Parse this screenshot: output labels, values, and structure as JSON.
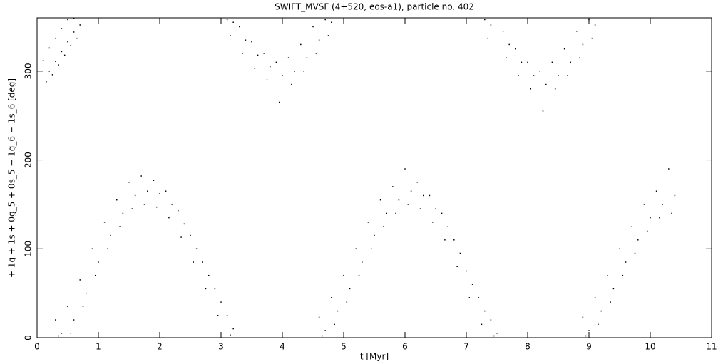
{
  "chart_data": {
    "type": "scatter",
    "title": "SWIFT_MVSF (4+520, eos-a1), particle no. 402",
    "xlabel": "t [Myr]",
    "ylabel": "+ 1g + 1s + 0g_5 + 0s_5 − 1g_6 − 1s_6 [deg]",
    "color": "#000000",
    "xlim": [
      0,
      11
    ],
    "xticks": [
      0,
      1,
      2,
      3,
      4,
      5,
      6,
      7,
      8,
      9,
      10,
      11
    ],
    "ylim": [
      0,
      360
    ],
    "yticks": [
      0,
      100,
      200,
      300
    ],
    "x": [
      0.1,
      0.15,
      0.2,
      0.2,
      0.25,
      0.3,
      0.3,
      0.35,
      0.4,
      0.4,
      0.45,
      0.5,
      0.5,
      0.55,
      0.6,
      0.6,
      0.65,
      0.7,
      0.3,
      0.35,
      0.4,
      0.5,
      0.55,
      0.6,
      0.7,
      0.75,
      0.8,
      0.9,
      0.95,
      1.0,
      1.1,
      1.15,
      1.2,
      1.3,
      1.35,
      1.4,
      1.5,
      1.55,
      1.6,
      1.7,
      1.75,
      1.8,
      1.9,
      1.95,
      2.0,
      2.1,
      2.15,
      2.2,
      2.3,
      2.35,
      2.4,
      2.5,
      2.55,
      2.6,
      2.7,
      2.75,
      2.8,
      2.9,
      2.95,
      3.0,
      3.1,
      3.15,
      3.2,
      3.1,
      3.15,
      3.2,
      3.3,
      3.35,
      3.4,
      3.5,
      3.55,
      3.6,
      3.7,
      3.75,
      3.8,
      3.9,
      3.95,
      4.0,
      4.1,
      4.15,
      4.2,
      4.3,
      4.35,
      4.4,
      4.5,
      4.55,
      4.6,
      4.7,
      4.75,
      4.8,
      4.6,
      4.65,
      4.7,
      4.8,
      4.85,
      4.9,
      5.0,
      5.05,
      5.1,
      5.2,
      5.25,
      5.3,
      5.4,
      5.45,
      5.5,
      5.6,
      5.65,
      5.7,
      5.8,
      5.85,
      5.9,
      6.0,
      6.05,
      6.1,
      6.2,
      6.25,
      6.3,
      6.4,
      6.45,
      6.5,
      6.6,
      6.65,
      6.7,
      6.8,
      6.85,
      6.9,
      7.0,
      7.05,
      7.1,
      7.2,
      7.25,
      7.3,
      7.4,
      7.45,
      7.5,
      7.3,
      7.35,
      7.4,
      7.6,
      7.65,
      7.7,
      7.8,
      7.85,
      7.9,
      8.0,
      8.05,
      8.1,
      8.2,
      8.25,
      8.3,
      8.4,
      8.45,
      8.5,
      8.6,
      8.65,
      8.7,
      8.8,
      8.85,
      8.9,
      9.0,
      9.05,
      9.1,
      8.9,
      8.95,
      9.0,
      9.1,
      9.15,
      9.2,
      9.3,
      9.35,
      9.4,
      9.5,
      9.55,
      9.6,
      9.7,
      9.75,
      9.8,
      9.9,
      9.95,
      10.0,
      10.1,
      10.15,
      10.2,
      10.3,
      10.35,
      10.4
    ],
    "values": [
      312,
      288,
      300,
      326,
      296,
      311,
      337,
      307,
      322,
      348,
      318,
      333,
      358,
      329,
      344,
      359,
      337,
      352,
      20,
      2,
      5,
      35,
      5,
      20,
      65,
      35,
      50,
      100,
      70,
      85,
      130,
      100,
      115,
      155,
      125,
      140,
      175,
      145,
      160,
      182,
      150,
      165,
      177,
      147,
      162,
      165,
      135,
      150,
      143,
      113,
      128,
      115,
      85,
      100,
      85,
      55,
      70,
      55,
      25,
      40,
      25,
      3,
      10,
      358,
      340,
      355,
      350,
      320,
      335,
      333,
      303,
      318,
      320,
      290,
      305,
      310,
      265,
      295,
      315,
      285,
      300,
      330,
      300,
      315,
      350,
      320,
      335,
      358,
      340,
      355,
      23,
      2,
      8,
      45,
      15,
      30,
      70,
      40,
      55,
      100,
      70,
      85,
      130,
      100,
      115,
      155,
      125,
      140,
      170,
      140,
      155,
      190,
      150,
      165,
      175,
      145,
      160,
      160,
      130,
      145,
      140,
      110,
      125,
      110,
      80,
      95,
      75,
      45,
      60,
      45,
      15,
      30,
      20,
      2,
      5,
      358,
      337,
      352,
      345,
      315,
      330,
      325,
      295,
      310,
      310,
      280,
      295,
      300,
      255,
      285,
      310,
      280,
      295,
      325,
      295,
      310,
      345,
      315,
      330,
      358,
      337,
      352,
      23,
      2,
      8,
      45,
      15,
      30,
      70,
      40,
      55,
      100,
      70,
      85,
      125,
      95,
      110,
      150,
      120,
      135,
      165,
      135,
      150,
      190,
      140,
      160
    ]
  }
}
